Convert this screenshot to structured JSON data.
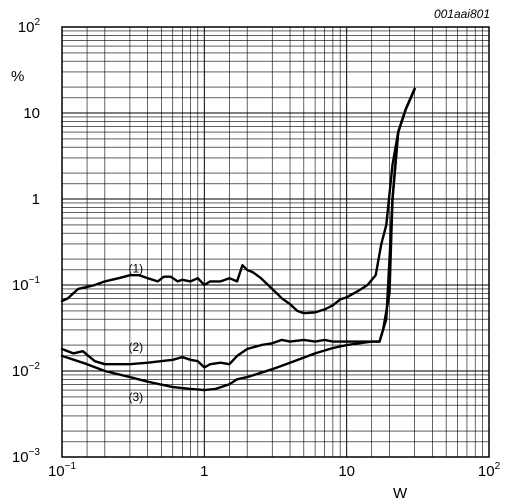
{
  "chart_data": {
    "type": "line",
    "reference": "001aai801",
    "xlabel": "W",
    "ylabel": "%",
    "x_scale": "log",
    "y_scale": "log",
    "xlim": [
      0.1,
      100
    ],
    "ylim": [
      0.001,
      100
    ],
    "grid": true,
    "x_ticks": [
      {
        "value": 0.1,
        "base": "10",
        "exp": "−1"
      },
      {
        "value": 1,
        "base": "1",
        "exp": ""
      },
      {
        "value": 10,
        "base": "10",
        "exp": ""
      },
      {
        "value": 100,
        "base": "10",
        "exp": "2"
      }
    ],
    "y_ticks": [
      {
        "value": 0.001,
        "base": "10",
        "exp": "−3"
      },
      {
        "value": 0.01,
        "base": "10",
        "exp": "−2"
      },
      {
        "value": 0.1,
        "base": "10",
        "exp": "−1"
      },
      {
        "value": 1,
        "base": "1",
        "exp": ""
      },
      {
        "value": 10,
        "base": "10",
        "exp": ""
      },
      {
        "value": 100,
        "base": "10",
        "exp": "2"
      }
    ],
    "series": [
      {
        "name": "(1)",
        "label_at": [
          0.33,
          0.14
        ],
        "points": [
          [
            0.1,
            0.065
          ],
          [
            0.11,
            0.07
          ],
          [
            0.13,
            0.09
          ],
          [
            0.15,
            0.095
          ],
          [
            0.17,
            0.1
          ],
          [
            0.2,
            0.11
          ],
          [
            0.25,
            0.12
          ],
          [
            0.3,
            0.13
          ],
          [
            0.35,
            0.13
          ],
          [
            0.4,
            0.12
          ],
          [
            0.47,
            0.11
          ],
          [
            0.52,
            0.125
          ],
          [
            0.58,
            0.125
          ],
          [
            0.65,
            0.11
          ],
          [
            0.7,
            0.115
          ],
          [
            0.8,
            0.11
          ],
          [
            0.9,
            0.12
          ],
          [
            1.0,
            0.1
          ],
          [
            1.1,
            0.11
          ],
          [
            1.3,
            0.11
          ],
          [
            1.5,
            0.12
          ],
          [
            1.7,
            0.11
          ],
          [
            1.85,
            0.17
          ],
          [
            2.0,
            0.15
          ],
          [
            2.2,
            0.14
          ],
          [
            2.5,
            0.12
          ],
          [
            3.0,
            0.09
          ],
          [
            3.5,
            0.07
          ],
          [
            4.0,
            0.06
          ],
          [
            4.5,
            0.05
          ],
          [
            5.0,
            0.047
          ],
          [
            6.0,
            0.048
          ],
          [
            7.0,
            0.052
          ],
          [
            8.0,
            0.058
          ],
          [
            9.0,
            0.068
          ],
          [
            10,
            0.072
          ],
          [
            12,
            0.085
          ],
          [
            14,
            0.1
          ],
          [
            16,
            0.13
          ],
          [
            17.5,
            0.3
          ],
          [
            19,
            0.5
          ],
          [
            21,
            2.5
          ],
          [
            23,
            6
          ],
          [
            26,
            11
          ],
          [
            30,
            19
          ]
        ]
      },
      {
        "name": "(2)",
        "label_at": [
          0.33,
          0.017
        ],
        "points": [
          [
            0.1,
            0.018
          ],
          [
            0.12,
            0.016
          ],
          [
            0.14,
            0.017
          ],
          [
            0.17,
            0.013
          ],
          [
            0.2,
            0.012
          ],
          [
            0.3,
            0.012
          ],
          [
            0.4,
            0.0125
          ],
          [
            0.6,
            0.0135
          ],
          [
            0.7,
            0.0145
          ],
          [
            0.8,
            0.0135
          ],
          [
            0.9,
            0.013
          ],
          [
            1.0,
            0.011
          ],
          [
            1.1,
            0.012
          ],
          [
            1.3,
            0.0125
          ],
          [
            1.5,
            0.012
          ],
          [
            1.7,
            0.015
          ],
          [
            2.0,
            0.018
          ],
          [
            2.5,
            0.02
          ],
          [
            3.0,
            0.021
          ],
          [
            3.5,
            0.023
          ],
          [
            4.0,
            0.022
          ],
          [
            5.0,
            0.023
          ],
          [
            6.0,
            0.022
          ],
          [
            7.0,
            0.023
          ],
          [
            8.0,
            0.022
          ],
          [
            10,
            0.022
          ],
          [
            14,
            0.022
          ],
          [
            17,
            0.022
          ],
          [
            18,
            0.03
          ],
          [
            20,
            0.08
          ],
          [
            21,
            1.0
          ],
          [
            23,
            6
          ],
          [
            26,
            11
          ],
          [
            30,
            19
          ]
        ]
      },
      {
        "name": "(3)",
        "label_at": [
          0.33,
          0.0045
        ],
        "points": [
          [
            0.1,
            0.015
          ],
          [
            0.15,
            0.012
          ],
          [
            0.2,
            0.01
          ],
          [
            0.3,
            0.0085
          ],
          [
            0.4,
            0.0075
          ],
          [
            0.6,
            0.0065
          ],
          [
            0.8,
            0.0062
          ],
          [
            1.0,
            0.006
          ],
          [
            1.2,
            0.0062
          ],
          [
            1.5,
            0.007
          ],
          [
            1.7,
            0.008
          ],
          [
            2.0,
            0.0085
          ],
          [
            3.0,
            0.0105
          ],
          [
            4.0,
            0.0125
          ],
          [
            6.0,
            0.016
          ],
          [
            8.0,
            0.0185
          ],
          [
            10,
            0.02
          ],
          [
            15,
            0.022
          ],
          [
            17,
            0.022
          ],
          [
            19,
            0.04
          ],
          [
            20,
            0.2
          ],
          [
            21,
            1.0
          ],
          [
            23,
            6
          ],
          [
            26,
            11
          ],
          [
            30,
            19
          ]
        ]
      }
    ]
  }
}
